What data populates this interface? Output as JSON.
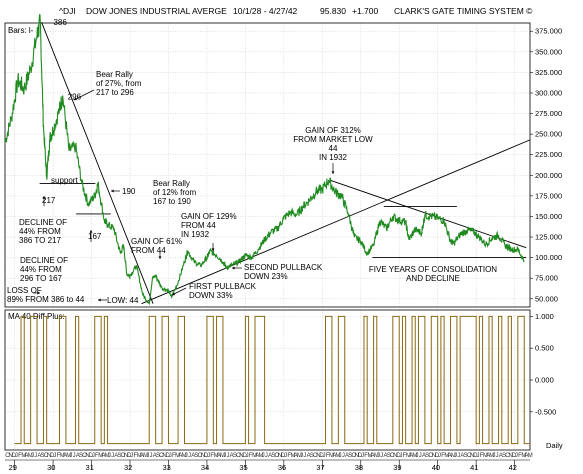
{
  "header": {
    "symbol": "^DJI",
    "name": "DOW JONES INDUSTRIAL AVERGE",
    "date_range": "10/1/28 - 4/27/42",
    "last": "95.830",
    "change": "+1.700",
    "brand": "CLARK'S GATE TIMING SYSTEM ©"
  },
  "upper_panel": {
    "label": "Bars: l-"
  },
  "lower_panel": {
    "label": "MA 40 Diff Plus:",
    "x_axis_label": "Daily"
  },
  "colors": {
    "price": "#1f8a1f",
    "indicator": "#8b6914",
    "trendline": "#000000",
    "grid": "#cfcfcf"
  },
  "chart_data": [
    {
      "type": "line",
      "title": "",
      "series": [
        {
          "x": [
            "1928-10",
            "1928-12",
            "1929-02",
            "1929-04",
            "1929-06",
            "1929-08",
            "1929-09",
            "1929-10",
            "1929-11",
            "1929-12",
            "1930-01",
            "1930-03",
            "1930-04",
            "1930-06",
            "1930-08",
            "1930-10",
            "1930-12",
            "1931-02",
            "1931-03",
            "1931-05",
            "1931-06",
            "1931-08",
            "1931-10",
            "1931-11",
            "1931-12",
            "1932-01",
            "1932-03",
            "1932-05",
            "1932-07",
            "1932-08",
            "1932-09",
            "1932-11",
            "1933-01",
            "1933-02",
            "1933-04",
            "1933-06",
            "1933-07",
            "1933-09",
            "1933-11",
            "1934-01",
            "1934-02",
            "1934-04",
            "1934-06",
            "1934-07",
            "1934-09",
            "1934-11",
            "1935-01",
            "1935-03",
            "1935-05",
            "1935-07",
            "1935-09",
            "1935-11",
            "1936-01",
            "1936-03",
            "1936-05",
            "1936-07",
            "1936-09",
            "1936-11",
            "1937-01",
            "1937-03",
            "1937-05",
            "1937-07",
            "1937-09",
            "1937-11",
            "1938-01",
            "1938-03",
            "1938-05",
            "1938-07",
            "1938-09",
            "1938-11",
            "1939-01",
            "1939-03",
            "1939-04",
            "1939-06",
            "1939-08",
            "1939-09",
            "1939-11",
            "1940-01",
            "1940-03",
            "1940-05",
            "1940-06",
            "1940-08",
            "1940-10",
            "1940-12",
            "1941-02",
            "1941-04",
            "1941-06",
            "1941-08",
            "1941-10",
            "1941-12",
            "1942-02",
            "1942-04"
          ],
          "values": [
            240,
            270,
            315,
            305,
            330,
            370,
            386,
            260,
            198,
            245,
            255,
            280,
            296,
            230,
            235,
            190,
            165,
            175,
            190,
            145,
            140,
            135,
            105,
            115,
            80,
            78,
            90,
            55,
            44,
            75,
            78,
            63,
            60,
            52,
            70,
            95,
            108,
            95,
            90,
            100,
            108,
            103,
            95,
            88,
            91,
            95,
            103,
            100,
            110,
            122,
            131,
            135,
            148,
            155,
            152,
            162,
            170,
            180,
            183,
            194,
            180,
            175,
            155,
            125,
            120,
            105,
            115,
            145,
            135,
            150,
            145,
            143,
            122,
            134,
            130,
            152,
            150,
            148,
            145,
            120,
            117,
            128,
            133,
            132,
            125,
            116,
            124,
            127,
            115,
            110,
            110,
            95.83
          ]
        }
      ],
      "x_ticks": [
        "29",
        "30",
        "31",
        "32",
        "33",
        "34",
        "35",
        "36",
        "37",
        "38",
        "39",
        "40",
        "41",
        "42"
      ],
      "month_ticks": [
        "J",
        "F",
        "M",
        "A",
        "M",
        "J",
        "J",
        "A",
        "S",
        "O",
        "N",
        "D"
      ],
      "y_ticks": [
        "375.000",
        "350.000",
        "325.000",
        "300.000",
        "275.000",
        "250.000",
        "225.000",
        "200.000",
        "175.000",
        "150.000",
        "125.000",
        "100.000",
        "75.000",
        "50.000"
      ],
      "ylim": [
        40,
        385
      ],
      "grid": true,
      "annotations": [
        {
          "text": "386"
        },
        {
          "text": "296"
        },
        {
          "lines": [
            "Bear Rally",
            "of 27%, from",
            "217 to 296"
          ]
        },
        {
          "text": "support"
        },
        {
          "text": "190"
        },
        {
          "lines": [
            "Bear Rally",
            "of 12% from",
            "167 to 190"
          ]
        },
        {
          "text": "217"
        },
        {
          "text": "167"
        },
        {
          "lines": [
            "DECLINE OF",
            "44% FROM",
            "386 TO 217"
          ]
        },
        {
          "lines": [
            "DECLINE OF",
            "44% FROM",
            "296 TO 167"
          ]
        },
        {
          "lines": [
            "LOSS OF",
            "89% FROM 386 to 44"
          ]
        },
        {
          "text": "LOW: 44"
        },
        {
          "lines": [
            "GAIN OF 61%",
            "FROM 44"
          ]
        },
        {
          "lines": [
            "GAIN OF 129%",
            "FROM 44",
            "IN 1932"
          ]
        },
        {
          "lines": [
            "FIRST PULLBACK",
            "DOWN 33%"
          ]
        },
        {
          "lines": [
            "SECOND PULLBACK",
            "DOWN 23%"
          ]
        },
        {
          "lines": [
            "GAIN OF 312%",
            "FROM MARKET LOW",
            "44",
            "IN 1932"
          ]
        },
        {
          "lines": [
            "FIVE YEARS OF CONSOLIDATION",
            "AND DECLINE"
          ]
        }
      ]
    },
    {
      "type": "line",
      "title": "",
      "series": [
        {
          "x": [
            "1929-01",
            "1929-03",
            "1929-04",
            "1929-06",
            "1929-08",
            "1929-10",
            "1929-11",
            "1930-03",
            "1930-05",
            "1930-08",
            "1930-09",
            "1930-11",
            "1931-02",
            "1931-04",
            "1931-05",
            "1931-06",
            "1932-02",
            "1932-04",
            "1932-07",
            "1932-09",
            "1932-11",
            "1933-01",
            "1933-04",
            "1933-06",
            "1933-10",
            "1934-01",
            "1934-03",
            "1934-04",
            "1934-06",
            "1934-10",
            "1935-01",
            "1935-02",
            "1935-04",
            "1935-07",
            "1936-02",
            "1936-04",
            "1936-09",
            "1937-02",
            "1937-04",
            "1937-06",
            "1937-08",
            "1938-02",
            "1938-03",
            "1938-05",
            "1938-06",
            "1938-11",
            "1939-01",
            "1939-02",
            "1939-03",
            "1939-05",
            "1939-06",
            "1939-07",
            "1939-09",
            "1939-11",
            "1940-01",
            "1940-02",
            "1940-03",
            "1940-05",
            "1940-07",
            "1940-08",
            "1941-01",
            "1941-02",
            "1941-03",
            "1941-05",
            "1941-06",
            "1941-08",
            "1941-09",
            "1941-11",
            "1941-12",
            "1942-02",
            "1942-04"
          ],
          "values": [
            -1,
            1,
            -1,
            1,
            -1,
            1,
            -1,
            1,
            -1,
            1,
            -1,
            -1,
            1,
            -1,
            1,
            -1,
            -1,
            -1,
            1,
            -1,
            1,
            -1,
            1,
            -1,
            -1,
            1,
            -1,
            1,
            -1,
            -1,
            1,
            -1,
            1,
            -1,
            -1,
            -1,
            -1,
            1,
            -1,
            1,
            -1,
            1,
            -1,
            1,
            -1,
            1,
            -1,
            1,
            -1,
            1,
            -1,
            1,
            -1,
            1,
            -1,
            1,
            -1,
            1,
            -1,
            1,
            -1,
            1,
            -1,
            1,
            -1,
            1,
            -1,
            1,
            -1,
            1,
            -1
          ]
        }
      ],
      "y_ticks": [
        "1.000",
        "0.500",
        "0.000",
        "-0.500"
      ],
      "ylim": [
        -1.1,
        1.1
      ],
      "grid": true
    }
  ]
}
